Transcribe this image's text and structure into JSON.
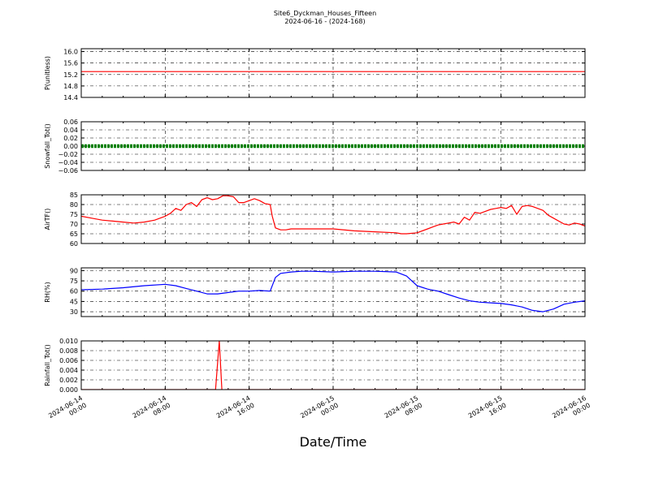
{
  "chart_data": {
    "title": "Site6_Dyckman_Houses_Fifteen",
    "subtitle": "2024-06-16 - (2024-168)",
    "xlabel": "Date/Time",
    "type": "line",
    "grid": true,
    "x_ticks": [
      [
        "2024-06-14",
        "00:00"
      ],
      [
        "2024-06-14",
        "08:00"
      ],
      [
        "2024-06-14",
        "16:00"
      ],
      [
        "2024-06-15",
        "00:00"
      ],
      [
        "2024-06-15",
        "08:00"
      ],
      [
        "2024-06-15",
        "16:00"
      ],
      [
        "2024-06-16",
        "00:00"
      ]
    ],
    "xlim": [
      "2024-06-14 00:00",
      "2024-06-16 00:00"
    ],
    "panels": [
      {
        "ylabel": "P(unitless)",
        "ylim": [
          14.4,
          16.1
        ],
        "yticks": [
          "14.4",
          "14.8",
          "15.2",
          "15.6",
          "16.0"
        ],
        "color": "#ff0000",
        "marker": "line",
        "x_hours": [
          0,
          48
        ],
        "values": [
          15.3,
          15.3
        ]
      },
      {
        "ylabel": "Snowfall_Tot()",
        "ylim": [
          -0.06,
          0.06
        ],
        "yticks": [
          "−0.06",
          "−0.04",
          "−0.02",
          "0.00",
          "0.02",
          "0.04",
          "0.06"
        ],
        "color": "#008000",
        "marker": "dots",
        "x_hours": [
          0,
          48
        ],
        "values": [
          0.0,
          0.0
        ]
      },
      {
        "ylabel": "AirTF()",
        "ylim": [
          60,
          85
        ],
        "yticks": [
          "60",
          "65",
          "70",
          "75",
          "80",
          "85"
        ],
        "color": "#ff0000",
        "marker": "line",
        "x_hours": [
          0,
          1,
          2,
          3,
          4,
          5,
          6,
          7,
          8,
          8.5,
          9,
          9.5,
          10,
          10.5,
          11,
          11.5,
          12,
          12.5,
          13,
          13.5,
          14,
          14.5,
          15,
          15.5,
          16,
          16.5,
          17,
          17.5,
          18,
          18.2,
          18.5,
          19,
          19.5,
          20,
          22,
          24,
          26,
          28,
          30,
          30.5,
          31,
          32,
          33,
          33.5,
          34,
          34.5,
          35,
          35.5,
          36,
          36.5,
          37,
          37.5,
          38,
          38.5,
          39,
          39.5,
          40,
          40.5,
          41,
          41.5,
          42,
          42.5,
          43,
          43.5,
          44,
          44.5,
          45,
          46,
          46.5,
          47,
          47.5,
          48
        ],
        "values": [
          74,
          73,
          72,
          71.5,
          71,
          70.5,
          71,
          72,
          74,
          75.5,
          78,
          77,
          80,
          81,
          79,
          82.5,
          83.5,
          82.5,
          83,
          84.5,
          84.5,
          84,
          81,
          81,
          82,
          83,
          82,
          80.5,
          80,
          74,
          68,
          67,
          67,
          67.5,
          67.5,
          67.5,
          66.5,
          66,
          65.5,
          65,
          65,
          65.5,
          67.5,
          68.5,
          69.5,
          70,
          70.5,
          71,
          70,
          73.5,
          72,
          76,
          75.5,
          76.5,
          77.5,
          78,
          78.5,
          78,
          79.5,
          75,
          79,
          79.5,
          79,
          78,
          77,
          74.5,
          73,
          70,
          69.5,
          70.5,
          70,
          69
        ]
      },
      {
        "ylabel": "RH(%)",
        "ylim": [
          23,
          94
        ],
        "yticks": [
          "30",
          "45",
          "60",
          "75",
          "90"
        ],
        "color": "#0000ff",
        "marker": "line",
        "x_hours": [
          0,
          2,
          4,
          6,
          8,
          9,
          10,
          11,
          12,
          13,
          14,
          15,
          16,
          17,
          18,
          18.5,
          19,
          20,
          21,
          22,
          24,
          26,
          28,
          30,
          31,
          32,
          33,
          34,
          35,
          36,
          37,
          38,
          39,
          40,
          41,
          42,
          43,
          44,
          45,
          46,
          47,
          48
        ],
        "values": [
          62,
          63,
          65,
          68,
          70,
          68,
          64,
          60,
          56,
          56,
          58,
          60,
          60,
          61,
          60,
          80,
          86,
          88,
          89,
          89,
          88,
          89,
          89,
          88,
          82,
          68,
          63,
          60,
          55,
          50,
          46,
          44,
          43,
          42,
          40,
          37,
          32,
          30,
          34,
          41,
          44,
          46
        ]
      },
      {
        "ylabel": "Rainfall_Tot()",
        "ylim": [
          0,
          0.01
        ],
        "yticks": [
          "0.000",
          "0.002",
          "0.004",
          "0.006",
          "0.008",
          "0.010"
        ],
        "color": "#ff0000",
        "marker": "line",
        "x_hours": [
          0,
          12.8,
          13.15,
          13.45,
          13.75,
          48
        ],
        "values": [
          0,
          0,
          0.01,
          -0.002,
          0,
          0
        ]
      }
    ]
  }
}
